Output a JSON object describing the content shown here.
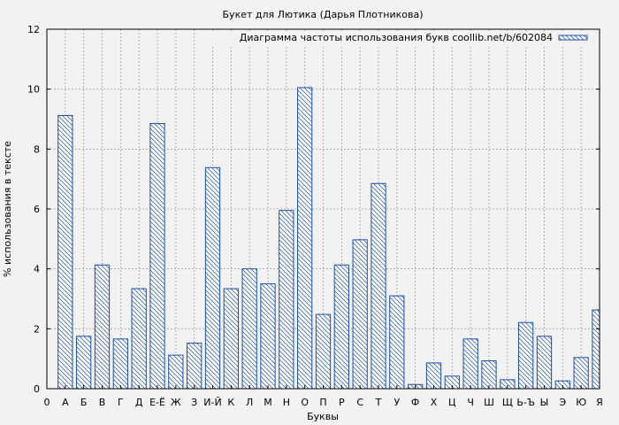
{
  "chart_data": {
    "type": "bar",
    "title": "Букет для Лютика (Дарья Плотникова)",
    "xlabel": "Буквы",
    "ylabel": "% использования в тексте",
    "ylim": [
      0,
      12
    ],
    "yticks": [
      "0",
      "2",
      "4",
      "6",
      "8",
      "10",
      "12"
    ],
    "x_origin_label": "0",
    "categories": [
      "А",
      "Б",
      "В",
      "Г",
      "Д",
      "Е-Ё",
      "Ж",
      "З",
      "И-Й",
      "К",
      "Л",
      "М",
      "Н",
      "О",
      "П",
      "Р",
      "С",
      "Т",
      "У",
      "Ф",
      "Х",
      "Ц",
      "Ч",
      "Ш",
      "Щ",
      "Ь-Ъ",
      "Ы",
      "Э",
      "Ю",
      "Я"
    ],
    "series": [
      {
        "name": "Диаграмма частоты использования букв coollib.net/b/602084",
        "values": [
          9.12,
          1.75,
          4.13,
          1.66,
          3.34,
          8.85,
          1.12,
          1.52,
          7.38,
          3.34,
          4.0,
          3.5,
          5.95,
          10.05,
          2.48,
          4.13,
          4.97,
          6.85,
          3.1,
          0.14,
          0.86,
          0.42,
          1.66,
          0.93,
          0.3,
          2.21,
          1.75,
          0.26,
          1.04,
          2.63
        ]
      }
    ],
    "grid": true,
    "legend_position": "top-right",
    "colors": {
      "bar_stroke": "#1c4fa8",
      "hatch": "#1c4fa8",
      "bar_fill": "#ffffff",
      "grid": "#a0a0a0",
      "background": "#f2f2f2"
    }
  }
}
